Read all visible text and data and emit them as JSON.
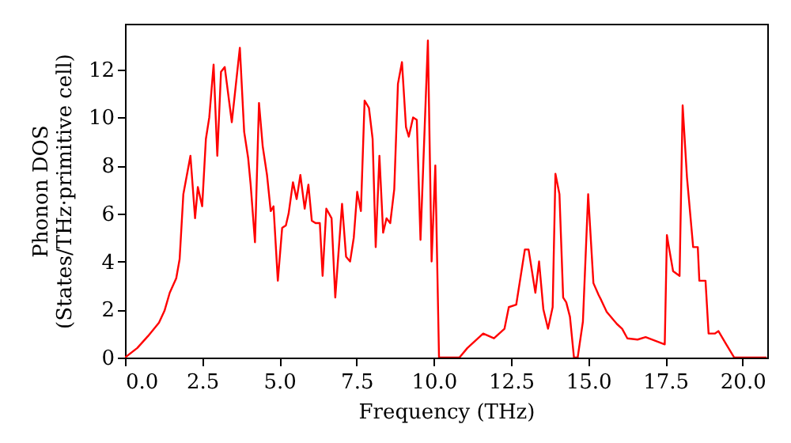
{
  "chart_data": {
    "type": "line",
    "xlabel": "Frequency (THz)",
    "ylabel": "Phonon DOS\n(States/THz·primitive cell)",
    "xlim": [
      0,
      20.8
    ],
    "ylim": [
      0,
      13.9
    ],
    "xticks": [
      {
        "value": 0,
        "label": "0.0"
      },
      {
        "value": 2.5,
        "label": "2.5"
      },
      {
        "value": 5,
        "label": "5.0"
      },
      {
        "value": 7.5,
        "label": "7.5"
      },
      {
        "value": 10,
        "label": "10.0"
      },
      {
        "value": 12.5,
        "label": "12.5"
      },
      {
        "value": 15,
        "label": "15.0"
      },
      {
        "value": 17.5,
        "label": "17.5"
      },
      {
        "value": 20,
        "label": "20.0"
      }
    ],
    "yticks": [
      0,
      2,
      4,
      6,
      8,
      10,
      12
    ],
    "grid": false,
    "marker": "none",
    "line_style": "solid",
    "series": [
      {
        "color": "#ff0000",
        "x": [
          0,
          0.4,
          0.75,
          1.1,
          1.28,
          1.45,
          1.66,
          1.77,
          1.89,
          2.12,
          2.27,
          2.36,
          2.5,
          2.62,
          2.73,
          2.87,
          2.99,
          3.11,
          3.23,
          3.46,
          3.72,
          3.86,
          3.99,
          4.07,
          4.21,
          4.34,
          4.46,
          4.6,
          4.72,
          4.81,
          4.95,
          5.09,
          5.21,
          5.3,
          5.44,
          5.56,
          5.68,
          5.82,
          5.94,
          6.05,
          6.17,
          6.31,
          6.4,
          6.52,
          6.69,
          6.81,
          7.03,
          7.16,
          7.29,
          7.41,
          7.52,
          7.64,
          7.76,
          7.9,
          8.02,
          8.12,
          8.24,
          8.36,
          8.47,
          8.59,
          8.72,
          8.84,
          8.97,
          9.1,
          9.19,
          9.33,
          9.45,
          9.57,
          9.81,
          9.93,
          10.05,
          10.17,
          10.83,
          11.09,
          11.6,
          11.95,
          12.29,
          12.43,
          12.67,
          12.95,
          13.07,
          13.29,
          13.41,
          13.55,
          13.7,
          13.85,
          13.94,
          14.07,
          14.19,
          14.29,
          14.41,
          14.54,
          14.66,
          14.83,
          15.0,
          15.17,
          15.34,
          15.42,
          15.6,
          15.93,
          16.1,
          16.27,
          16.6,
          16.86,
          17.28,
          17.48,
          17.55,
          17.6,
          17.75,
          17.96,
          18.06,
          18.2,
          18.4,
          18.55,
          18.6,
          18.8,
          18.9,
          19.1,
          19.22,
          19.45,
          19.73,
          20.78
        ],
        "values": [
          0,
          0.4,
          0.9,
          1.45,
          1.95,
          2.7,
          3.3,
          4.1,
          6.8,
          8.4,
          5.8,
          7.1,
          6.3,
          9.1,
          10.0,
          12.2,
          8.4,
          11.9,
          12.1,
          9.8,
          12.9,
          9.4,
          8.3,
          7.2,
          4.8,
          10.6,
          8.8,
          7.6,
          6.1,
          6.3,
          3.2,
          5.4,
          5.5,
          6.0,
          7.3,
          6.6,
          7.6,
          6.2,
          7.2,
          5.7,
          5.6,
          5.6,
          3.4,
          6.2,
          5.8,
          2.5,
          6.4,
          4.2,
          4.0,
          5.0,
          6.9,
          6.1,
          10.7,
          10.4,
          9.1,
          4.6,
          8.4,
          5.2,
          5.8,
          5.6,
          7.0,
          11.4,
          12.3,
          9.6,
          9.2,
          10.0,
          9.9,
          4.9,
          13.2,
          4.0,
          8.0,
          0,
          0,
          0.4,
          1.0,
          0.8,
          1.2,
          2.1,
          2.2,
          4.5,
          4.5,
          2.7,
          4.0,
          2.0,
          1.2,
          2.1,
          7.65,
          6.8,
          2.5,
          2.3,
          1.7,
          0,
          0,
          1.5,
          6.8,
          3.1,
          2.6,
          2.4,
          1.9,
          1.4,
          1.2,
          0.8,
          0.75,
          0.85,
          0.65,
          0.55,
          5.1,
          4.7,
          3.6,
          3.4,
          10.5,
          7.5,
          4.6,
          4.6,
          3.2,
          3.2,
          1.0,
          1.0,
          1.1,
          0.6,
          0,
          0
        ]
      }
    ]
  }
}
